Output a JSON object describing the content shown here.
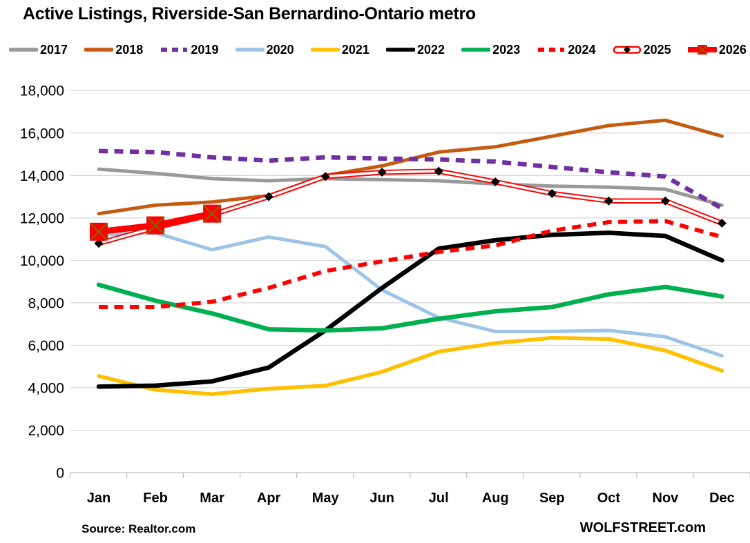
{
  "title": "Active Listings, Riverside-San Bernardino-Ontario metro",
  "footer": {
    "source": "Source: Realtor.com",
    "brand": "WOLFSTREET.com"
  },
  "background": "#FFFFFF",
  "chart_data": {
    "type": "line",
    "title": "Active Listings, Riverside-San Bernardino-Ontario metro",
    "xlabel": "",
    "ylabel": "",
    "x_categories": [
      "Jan",
      "Feb",
      "Mar",
      "Apr",
      "May",
      "Jun",
      "Jul",
      "Aug",
      "Sep",
      "Oct",
      "Nov",
      "Dec"
    ],
    "ylim": [
      0,
      18000
    ],
    "y_tick_step": 2000,
    "grid": "horizontal",
    "grid_color": "#D9D9D9",
    "axis_color": "#BFBFBF",
    "legend_position": "top",
    "series": [
      {
        "name": "2017",
        "color": "#999999",
        "kind": "solid",
        "width": 5,
        "values": [
          14300,
          14100,
          13850,
          13750,
          13850,
          13800,
          13750,
          13600,
          13500,
          13450,
          13350,
          12600
        ]
      },
      {
        "name": "2018",
        "color": "#C55A11",
        "kind": "solid",
        "width": 5,
        "values": [
          12200,
          12600,
          12750,
          13050,
          14000,
          14450,
          15100,
          15350,
          15850,
          16350,
          16600,
          15850
        ]
      },
      {
        "name": "2019",
        "color": "#7030A0",
        "kind": "dashed",
        "width": 6.5,
        "values": [
          15150,
          15100,
          14850,
          14700,
          14850,
          14800,
          14750,
          14650,
          14400,
          14150,
          13950,
          12450
        ]
      },
      {
        "name": "2020",
        "color": "#9DC3E6",
        "kind": "solid",
        "width": 5,
        "values": [
          11200,
          11300,
          10500,
          11100,
          10650,
          8600,
          7300,
          6650,
          6650,
          6700,
          6400,
          5500
        ]
      },
      {
        "name": "2021",
        "color": "#FFC000",
        "kind": "solid",
        "width": 5.5,
        "values": [
          4550,
          3900,
          3700,
          3950,
          4100,
          4750,
          5700,
          6100,
          6350,
          6300,
          5750,
          4800
        ]
      },
      {
        "name": "2022",
        "color": "#000000",
        "kind": "solid",
        "width": 6.5,
        "values": [
          4050,
          4100,
          4300,
          4950,
          6700,
          8700,
          10550,
          10950,
          11200,
          11300,
          11150,
          10000
        ]
      },
      {
        "name": "2023",
        "color": "#00B050",
        "kind": "solid",
        "width": 6.5,
        "values": [
          8850,
          8100,
          7500,
          6750,
          6700,
          6800,
          7250,
          7600,
          7800,
          8400,
          8750,
          8300
        ]
      },
      {
        "name": "2024",
        "color": "#FF0000",
        "kind": "dashed",
        "width": 6,
        "values": [
          7800,
          7800,
          8050,
          8700,
          9500,
          9950,
          10400,
          10700,
          11400,
          11800,
          11850,
          11100
        ]
      },
      {
        "name": "2025",
        "color": "#FF0000",
        "kind": "double-outline",
        "width": 7.5,
        "marker": "black-diamond",
        "marker_color": "#000000",
        "values": [
          10800,
          11550,
          12150,
          13000,
          13950,
          14150,
          14200,
          13700,
          13150,
          12800,
          12800,
          11750
        ]
      },
      {
        "name": "2026",
        "color": "#FF0000",
        "kind": "thick-solid",
        "width": 9,
        "marker": "red-square-x",
        "marker_color": "#FF0000",
        "marker_x_color": "#7A7000",
        "values": [
          11350,
          11650,
          12200,
          null,
          null,
          null,
          null,
          null,
          null,
          null,
          null,
          null
        ]
      }
    ]
  }
}
